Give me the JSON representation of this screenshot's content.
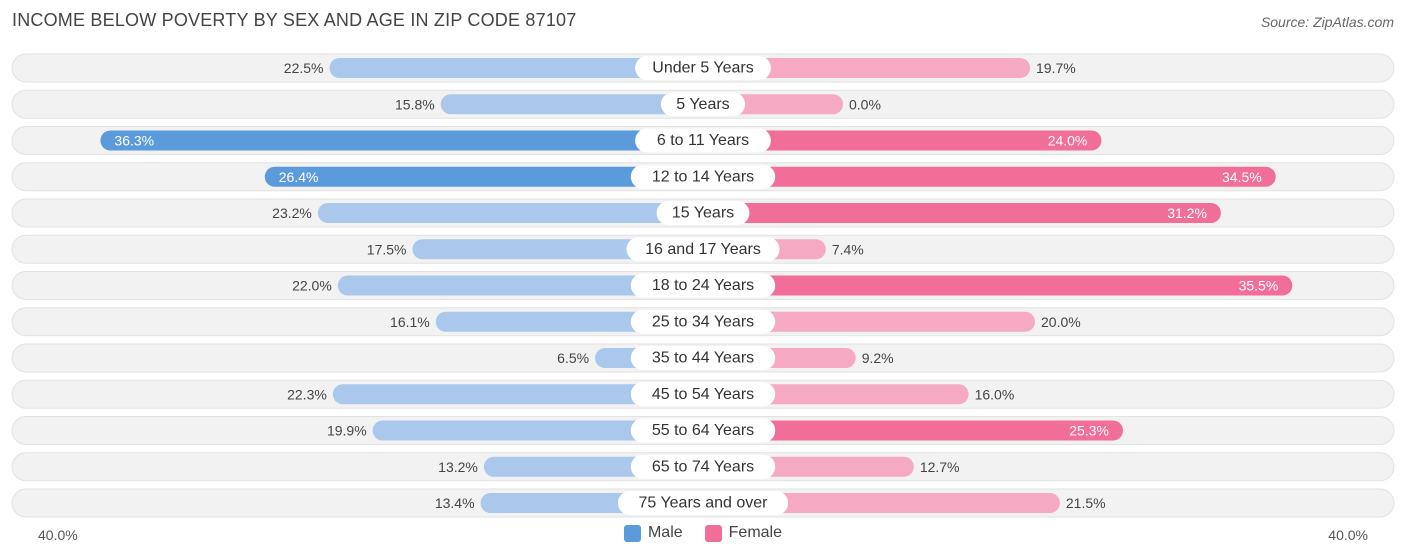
{
  "title": "INCOME BELOW POVERTY BY SEX AND AGE IN ZIP CODE 87107",
  "source": "Source: ZipAtlas.com",
  "colors": {
    "male": "#5b9bdb",
    "male_light": "#a9c8ec",
    "female": "#f06e98",
    "female_light": "#f6a9c3",
    "row_bg": "#f2f2f2",
    "row_border": "#e2e2e2"
  },
  "legend": {
    "male_label": "Male",
    "female_label": "Female"
  },
  "axis": {
    "left_label": "40.0%",
    "right_label": "40.0%"
  },
  "chart_data": {
    "type": "bar",
    "orientation": "horizontal-diverging",
    "title": "INCOME BELOW POVERTY BY SEX AND AGE IN ZIP CODE 87107",
    "xlim": [
      -40,
      40
    ],
    "categories": [
      "Under 5 Years",
      "5 Years",
      "6 to 11 Years",
      "12 to 14 Years",
      "15 Years",
      "16 and 17 Years",
      "18 to 24 Years",
      "25 to 34 Years",
      "35 to 44 Years",
      "45 to 54 Years",
      "55 to 64 Years",
      "65 to 74 Years",
      "75 Years and over"
    ],
    "series": [
      {
        "name": "Male",
        "values": [
          22.5,
          15.8,
          36.3,
          26.4,
          23.2,
          17.5,
          22.0,
          16.1,
          6.5,
          22.3,
          19.9,
          13.2,
          13.4
        ],
        "labels": [
          "22.5%",
          "15.8%",
          "36.3%",
          "26.4%",
          "23.2%",
          "17.5%",
          "22.0%",
          "16.1%",
          "6.5%",
          "22.3%",
          "19.9%",
          "13.2%",
          "13.4%"
        ]
      },
      {
        "name": "Female",
        "values": [
          19.7,
          0.0,
          24.0,
          34.5,
          31.2,
          7.4,
          35.5,
          20.0,
          9.2,
          16.0,
          25.3,
          12.7,
          21.5
        ],
        "labels": [
          "19.7%",
          "0.0%",
          "24.0%",
          "34.5%",
          "31.2%",
          "7.4%",
          "35.5%",
          "20.0%",
          "9.2%",
          "16.0%",
          "25.3%",
          "12.7%",
          "21.5%"
        ]
      }
    ],
    "legend_position": "bottom-center"
  }
}
